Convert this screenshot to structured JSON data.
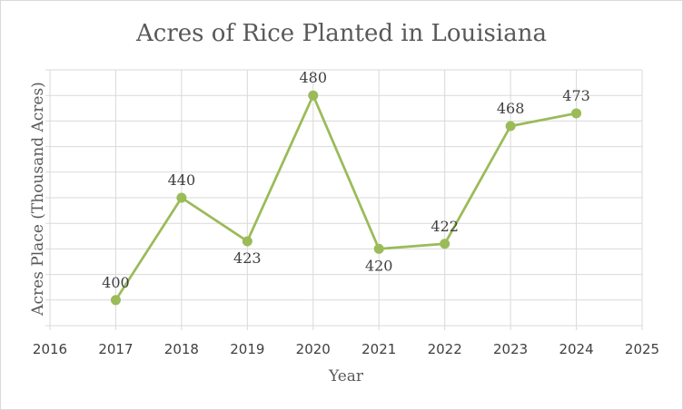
{
  "chart_data": {
    "type": "line",
    "title": "Acres of Rice Planted in Louisiana",
    "xlabel": "Year",
    "ylabel": "Acres Place (Thousand Acres)",
    "xlim": [
      2016,
      2025
    ],
    "x_ticks": [
      2016,
      2017,
      2018,
      2019,
      2020,
      2021,
      2022,
      2023,
      2024,
      2025
    ],
    "ylim": [
      390,
      490
    ],
    "y_step": 10,
    "y_tick_labels_shown": false,
    "grid": true,
    "legend": "none",
    "series": [
      {
        "color": "#9bbb59",
        "x": [
          2017,
          2018,
          2019,
          2020,
          2021,
          2022,
          2023,
          2024
        ],
        "y": [
          400,
          440,
          423,
          480,
          420,
          422,
          468,
          473
        ],
        "labels": [
          "400",
          "440",
          "423",
          "480",
          "420",
          "422",
          "468",
          "473"
        ]
      }
    ]
  }
}
